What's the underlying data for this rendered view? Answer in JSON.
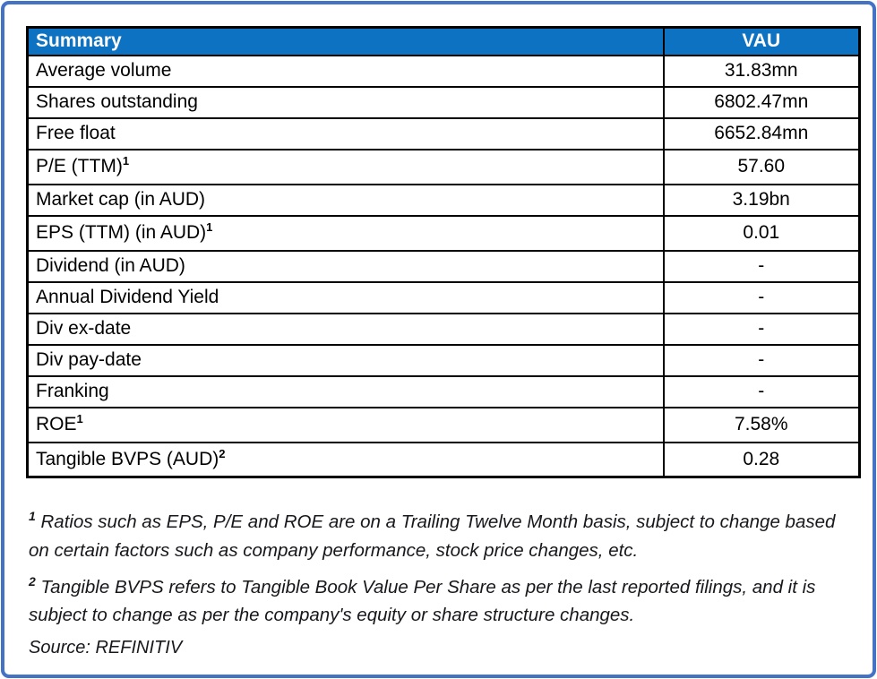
{
  "colors": {
    "outer_border": "#4472C4",
    "header_bg": "#0D72C2",
    "header_text": "#FFFFFF",
    "grid_border": "#000000",
    "body_text": "#000000",
    "footnote_text": "#17171C"
  },
  "table": {
    "header": {
      "label": "Summary",
      "value_col": "VAU"
    },
    "rows": [
      {
        "label": "Average volume",
        "sup": "",
        "value": "31.83mn"
      },
      {
        "label": "Shares outstanding",
        "sup": "",
        "value": "6802.47mn"
      },
      {
        "label": "Free float",
        "sup": "",
        "value": "6652.84mn"
      },
      {
        "label": "P/E (TTM)",
        "sup": "1",
        "value": "57.60"
      },
      {
        "label": "Market cap (in AUD)",
        "sup": "",
        "value": "3.19bn"
      },
      {
        "label": "EPS (TTM) (in AUD)",
        "sup": "1",
        "value": "0.01"
      },
      {
        "label": "Dividend (in AUD)",
        "sup": "",
        "value": "-"
      },
      {
        "label": "Annual Dividend Yield",
        "sup": "",
        "value": "-"
      },
      {
        "label": "Div ex-date",
        "sup": "",
        "value": "-"
      },
      {
        "label": "Div pay-date",
        "sup": "",
        "value": "-"
      },
      {
        "label": "Franking",
        "sup": "",
        "value": "-"
      },
      {
        "label": "ROE",
        "sup": "1",
        "value": "7.58%"
      },
      {
        "label": "Tangible BVPS (AUD)",
        "sup": "2",
        "value": "0.28"
      }
    ]
  },
  "footnotes": [
    {
      "marker": "1",
      "text": "Ratios such as EPS, P/E and ROE are on a Trailing Twelve Month basis, subject to change based on certain factors such as company performance, stock price changes, etc."
    },
    {
      "marker": "2",
      "text": "Tangible BVPS refers to Tangible Book Value Per Share as per the last reported filings, and it is subject to change as per the company's equity or share structure changes."
    }
  ],
  "source": "Source: REFINITIV"
}
